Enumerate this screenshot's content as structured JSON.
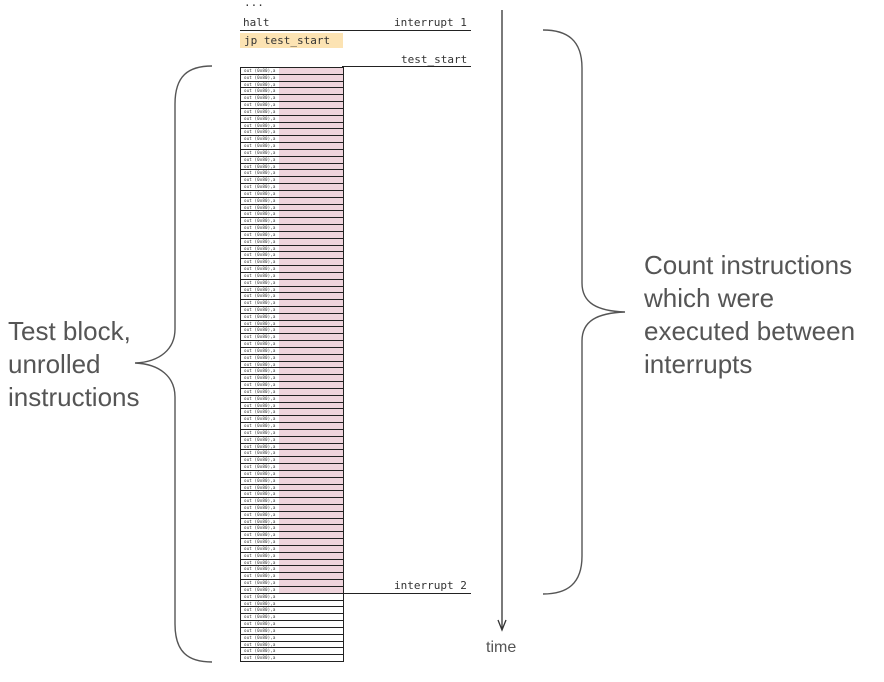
{
  "top_ellipsis": "...",
  "halt_label": "halt",
  "interrupt1_label": "interrupt 1",
  "jump_label": "jp test_start",
  "test_start_label": "test_start",
  "interrupt2_label": "interrupt 2",
  "instruction_text": "out (0x80),a",
  "instructions": {
    "highlighted_rows": 77,
    "plain_rows": 10
  },
  "left_label": [
    "Test block,",
    "unrolled",
    "instructions"
  ],
  "right_label": [
    "Count instructions",
    "which were",
    "executed between",
    "interrupts"
  ],
  "time_label": "time",
  "colors": {
    "highlight_pink": "#efd4dc",
    "highlight_yellow": "#fce3b3",
    "text_gray": "#555555",
    "line": "#222222"
  }
}
